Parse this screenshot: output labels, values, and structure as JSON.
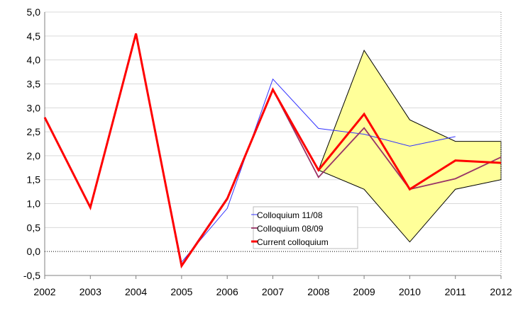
{
  "chart_data": {
    "type": "line",
    "x": [
      2002,
      2003,
      2004,
      2005,
      2006,
      2007,
      2008,
      2009,
      2010,
      2011,
      2012
    ],
    "ylim": [
      -0.5,
      5.0
    ],
    "yticks": [
      "-0,5",
      "0,0",
      "0,5",
      "1,0",
      "1,5",
      "2,0",
      "2,5",
      "3,0",
      "3,5",
      "4,0",
      "4,5",
      "5,0"
    ],
    "xticks": [
      "2002",
      "2003",
      "2004",
      "2005",
      "2006",
      "2007",
      "2008",
      "2009",
      "2010",
      "2011",
      "2012"
    ],
    "grid": true,
    "legend_position": "bottom-center",
    "band": {
      "color": "#FFFF99",
      "x": [
        2008,
        2009,
        2010,
        2011,
        2012
      ],
      "upper": [
        1.7,
        4.2,
        2.75,
        2.3,
        2.3
      ],
      "lower": [
        1.7,
        1.3,
        0.2,
        1.3,
        1.5
      ]
    },
    "series": [
      {
        "name": "Colloquium 11/08",
        "color": "#3333FF",
        "values": [
          2.8,
          0.92,
          4.55,
          -0.22,
          0.9,
          3.6,
          2.57,
          2.45,
          2.2,
          2.4,
          null
        ]
      },
      {
        "name": "Colloquium 08/09",
        "color": "#993366",
        "values": [
          2.8,
          0.92,
          4.55,
          -0.28,
          1.12,
          3.38,
          1.55,
          2.58,
          1.3,
          1.52,
          1.97
        ]
      },
      {
        "name": "Current colloquium",
        "color": "#FF0000",
        "values": [
          2.8,
          0.92,
          4.55,
          -0.3,
          1.1,
          3.38,
          1.7,
          2.87,
          1.3,
          1.9,
          1.85
        ]
      }
    ]
  }
}
